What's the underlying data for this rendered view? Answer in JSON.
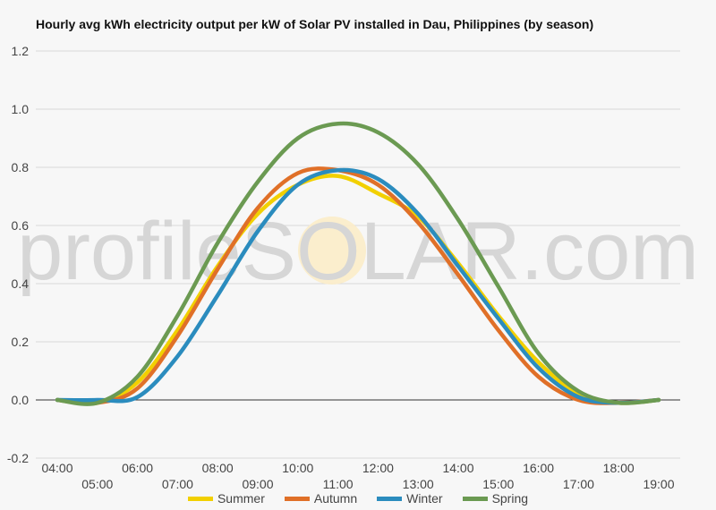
{
  "chart_data": {
    "type": "line",
    "title": "Hourly avg kWh electricity output per kW of Solar PV installed in Dau, Philippines (by season)",
    "xlabel": "",
    "ylabel": "",
    "ylim": [
      -0.2,
      1.2
    ],
    "yticks": [
      "-0.2",
      "0.0",
      "0.2",
      "0.4",
      "0.6",
      "0.8",
      "1.0",
      "1.2"
    ],
    "xticks": [
      "04:00",
      "05:00",
      "06:00",
      "07:00",
      "08:00",
      "09:00",
      "10:00",
      "11:00",
      "12:00",
      "13:00",
      "14:00",
      "15:00",
      "16:00",
      "17:00",
      "18:00",
      "19:00"
    ],
    "grid": true,
    "legend_position": "bottom",
    "watermark": "profileSOLAR.com",
    "series": [
      {
        "name": "Summer",
        "color": "#f2d000",
        "values": [
          0.0,
          -0.01,
          0.06,
          0.24,
          0.46,
          0.64,
          0.74,
          0.77,
          0.71,
          0.63,
          0.47,
          0.29,
          0.13,
          0.02,
          -0.01,
          0.0
        ]
      },
      {
        "name": "Autumn",
        "color": "#e07028",
        "values": [
          0.0,
          -0.01,
          0.04,
          0.22,
          0.45,
          0.66,
          0.78,
          0.79,
          0.74,
          0.61,
          0.43,
          0.24,
          0.08,
          0.0,
          -0.01,
          0.0
        ]
      },
      {
        "name": "Winter",
        "color": "#2b8cbe",
        "values": [
          0.0,
          0.0,
          0.01,
          0.15,
          0.36,
          0.58,
          0.74,
          0.79,
          0.76,
          0.64,
          0.46,
          0.28,
          0.11,
          0.01,
          -0.01,
          0.0
        ]
      },
      {
        "name": "Spring",
        "color": "#6b9a52",
        "values": [
          0.0,
          -0.01,
          0.08,
          0.29,
          0.54,
          0.75,
          0.9,
          0.95,
          0.92,
          0.81,
          0.62,
          0.39,
          0.16,
          0.03,
          -0.01,
          0.0
        ]
      }
    ]
  }
}
